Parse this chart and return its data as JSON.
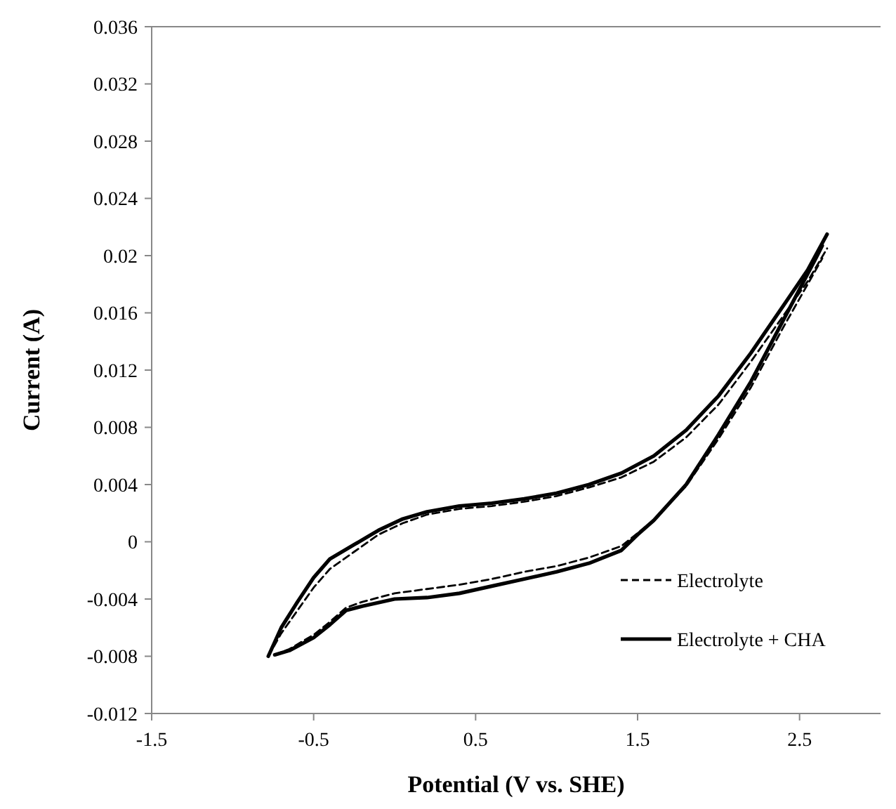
{
  "chart_data": {
    "type": "line",
    "xlabel": "Potential (V vs. SHE)",
    "ylabel": "Current (A)",
    "xlim": [
      -1.5,
      3.0
    ],
    "xticks": [
      -1.5,
      -0.5,
      0.5,
      1.5,
      2.5
    ],
    "ylim": [
      -0.012,
      0.036
    ],
    "yticks": [
      -0.012,
      -0.008,
      -0.004,
      0,
      0.004,
      0.008,
      0.012,
      0.016,
      0.02,
      0.024,
      0.028,
      0.032,
      0.036
    ],
    "grid": false,
    "legend": "bottom right",
    "marker": "none",
    "series": [
      {
        "name": "Electrolyte",
        "color": "#000000",
        "line_style": "dashed",
        "x": [
          -0.78,
          -0.7,
          -0.6,
          -0.5,
          -0.4,
          -0.25,
          -0.1,
          0.05,
          0.2,
          0.4,
          0.6,
          0.8,
          1.0,
          1.2,
          1.4,
          1.6,
          1.8,
          2.0,
          2.2,
          2.4,
          2.55,
          2.67
        ],
        "values": [
          -0.008,
          -0.0064,
          -0.0048,
          -0.0032,
          -0.0019,
          -0.0007,
          0.0005,
          0.0013,
          0.0019,
          0.0023,
          0.0025,
          0.0028,
          0.0032,
          0.0038,
          0.0045,
          0.0056,
          0.0073,
          0.0096,
          0.0126,
          0.0158,
          0.0182,
          0.0205
        ]
      },
      {
        "color": "#000000",
        "line_style": "dashed",
        "x": [
          -0.74,
          -0.65,
          -0.5,
          -0.4,
          -0.3,
          -0.2,
          0.0,
          0.2,
          0.4,
          0.6,
          0.8,
          1.0,
          1.2,
          1.4,
          1.5,
          1.6,
          1.8,
          2.0,
          2.2,
          2.4,
          2.6,
          2.64
        ],
        "values": [
          -0.0079,
          -0.0075,
          -0.0065,
          -0.0056,
          -0.0046,
          -0.0042,
          -0.0036,
          -0.0033,
          -0.003,
          -0.0026,
          -0.0021,
          -0.0017,
          -0.0011,
          -0.0003,
          0.0006,
          0.0015,
          0.0039,
          0.0072,
          0.0108,
          0.015,
          0.019,
          0.0198
        ]
      },
      {
        "name": "Electrolyte + CHA",
        "color": "#000000",
        "line_style": "solid",
        "x": [
          -0.78,
          -0.7,
          -0.6,
          -0.5,
          -0.4,
          -0.25,
          -0.1,
          0.05,
          0.2,
          0.4,
          0.6,
          0.8,
          1.0,
          1.2,
          1.4,
          1.6,
          1.8,
          2.0,
          2.2,
          2.4,
          2.55,
          2.67
        ],
        "values": [
          -0.008,
          -0.006,
          -0.0042,
          -0.0025,
          -0.0012,
          -0.0002,
          0.0008,
          0.0016,
          0.0021,
          0.0025,
          0.0027,
          0.003,
          0.0034,
          0.004,
          0.0048,
          0.006,
          0.0078,
          0.0102,
          0.0132,
          0.0165,
          0.019,
          0.0215
        ]
      },
      {
        "color": "#000000",
        "line_style": "solid",
        "x": [
          -0.74,
          -0.65,
          -0.5,
          -0.4,
          -0.3,
          -0.2,
          0.0,
          0.2,
          0.4,
          0.6,
          0.8,
          1.0,
          1.2,
          1.4,
          1.5,
          1.6,
          1.8,
          2.0,
          2.2,
          2.4,
          2.6,
          2.64
        ],
        "values": [
          -0.0079,
          -0.0076,
          -0.0067,
          -0.0058,
          -0.0048,
          -0.0045,
          -0.004,
          -0.0039,
          -0.0036,
          -0.0031,
          -0.0026,
          -0.0021,
          -0.0015,
          -0.0006,
          0.0005,
          0.0015,
          0.004,
          0.0075,
          0.0112,
          0.0155,
          0.0198,
          0.0207
        ]
      }
    ]
  }
}
